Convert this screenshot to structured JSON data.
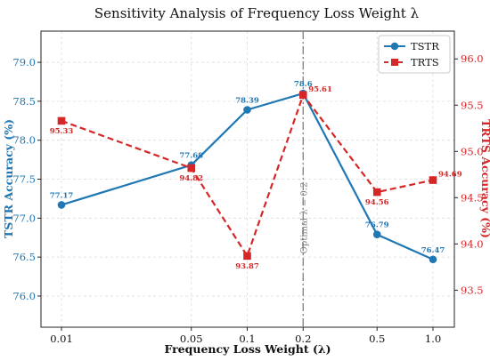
{
  "chart_data": {
    "type": "line",
    "title": "Sensitivity Analysis of Frequency Loss Weight λ",
    "xlabel": "Frequency Loss Weight (λ)",
    "x_scale": "log",
    "x": [
      0.01,
      0.05,
      0.1,
      0.2,
      0.5,
      1.0
    ],
    "x_tick_labels": [
      "0.01",
      "0.05",
      "0.1",
      "0.2",
      "0.5",
      "1.0"
    ],
    "grid": true,
    "legend_position": "top-right",
    "series": [
      {
        "name": "TSTR",
        "axis": "left",
        "color": "#1f77b4",
        "marker": "circle",
        "line_style": "solid",
        "values": [
          77.17,
          77.68,
          78.39,
          78.6,
          76.79,
          76.47
        ],
        "labels": [
          "77.17",
          "77.68",
          "78.39",
          "78.6",
          "76.79",
          "76.47"
        ]
      },
      {
        "name": "TRTS",
        "axis": "right",
        "color": "#d62728",
        "marker": "square",
        "line_style": "dashed",
        "values": [
          95.33,
          94.82,
          93.87,
          95.61,
          94.56,
          94.69
        ],
        "labels": [
          "95.33",
          "94.82",
          "93.87",
          "95.61",
          "94.56",
          "94.69"
        ]
      }
    ],
    "y_left": {
      "label": "TSTR Accuracy (%)",
      "color": "#1f77b4",
      "range": [
        75.6,
        79.4
      ],
      "ticks": [
        "76.0",
        "76.5",
        "77.0",
        "77.5",
        "78.0",
        "78.5",
        "79.0"
      ]
    },
    "y_right": {
      "label": "TRTS Accuracy (%)",
      "color": "#d62728",
      "range": [
        93.1,
        96.3
      ],
      "ticks": [
        "93.5",
        "94.0",
        "94.5",
        "95.0",
        "95.5",
        "96.0"
      ]
    },
    "annotation": {
      "x": 0.2,
      "text": "Optimal λ = 0.2",
      "color": "#808080"
    }
  }
}
